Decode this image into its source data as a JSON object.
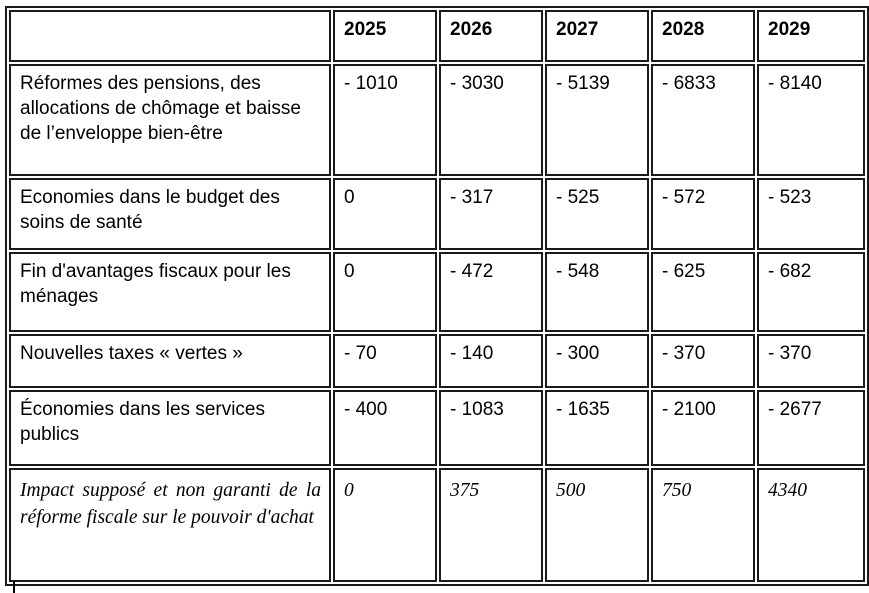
{
  "table": {
    "columns": [
      "",
      "2025",
      "2026",
      "2027",
      "2028",
      "2029"
    ],
    "rows": [
      {
        "label": "Réformes des pensions, des allocations de chômage et baisse de l’enveloppe bien-être",
        "values": [
          "- 1010",
          "- 3030",
          "- 5139",
          "- 6833",
          "- 8140"
        ]
      },
      {
        "label": "Economies dans le budget des soins de santé",
        "values": [
          "0",
          "- 317",
          "- 525",
          "- 572",
          "- 523"
        ]
      },
      {
        "label": "Fin d'avantages fiscaux pour les ménages",
        "values": [
          "0",
          "- 472",
          "- 548",
          "- 625",
          "- 682"
        ]
      },
      {
        "label": "Nouvelles taxes « vertes »",
        "values": [
          "- 70",
          "- 140",
          "- 300",
          "- 370",
          "- 370"
        ]
      },
      {
        "label": "Économies dans les services publics",
        "values": [
          "- 400",
          "- 1083",
          "- 1635",
          "- 2100",
          "- 2677"
        ]
      },
      {
        "label": "Impact supposé et non garanti de la réforme fiscale sur le pouvoir d'achat",
        "values": [
          "0",
          "375",
          "500",
          "750",
          "4340"
        ]
      }
    ]
  },
  "colors": {
    "border": "#1a1a1a",
    "text": "#000000",
    "background": "#ffffff"
  }
}
